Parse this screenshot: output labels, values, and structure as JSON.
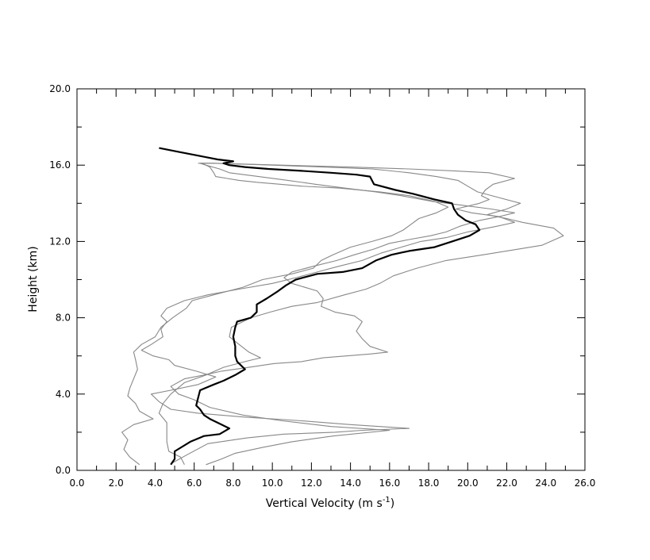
{
  "chart_data": {
    "type": "line",
    "title": "",
    "xlabel": "Vertical Velocity (m s",
    "xlabel_sup": "-1",
    "xlabel_end": ")",
    "ylabel": "Height (km)",
    "xlim": [
      0,
      26
    ],
    "ylim": [
      0,
      20
    ],
    "x_ticks": [
      "0.0",
      "2.0",
      "4.0",
      "6.0",
      "8.0",
      "10.0",
      "12.0",
      "14.0",
      "16.0",
      "18.0",
      "20.0",
      "22.0",
      "24.0",
      "26.0"
    ],
    "y_ticks": [
      "0.0",
      "4.0",
      "8.0",
      "12.0",
      "16.0",
      "20.0"
    ],
    "grid": false,
    "colors": {
      "mean": "#000000",
      "members": "#888888"
    },
    "series": [
      {
        "role": "mean",
        "points": [
          [
            4.8,
            0.3
          ],
          [
            5.0,
            0.6
          ],
          [
            5.0,
            1.0
          ],
          [
            5.8,
            1.5
          ],
          [
            6.5,
            1.8
          ],
          [
            7.3,
            1.9
          ],
          [
            7.8,
            2.2
          ],
          [
            7.2,
            2.5
          ],
          [
            6.8,
            2.7
          ],
          [
            6.5,
            2.9
          ],
          [
            6.3,
            3.2
          ],
          [
            6.1,
            3.4
          ],
          [
            6.2,
            3.8
          ],
          [
            6.3,
            4.2
          ],
          [
            7.0,
            4.5
          ],
          [
            7.5,
            4.7
          ],
          [
            8.1,
            5.0
          ],
          [
            8.6,
            5.3
          ],
          [
            8.2,
            5.7
          ],
          [
            8.1,
            6.0
          ],
          [
            8.1,
            6.5
          ],
          [
            8.0,
            7.0
          ],
          [
            8.1,
            7.5
          ],
          [
            8.2,
            7.8
          ],
          [
            8.9,
            8.0
          ],
          [
            9.2,
            8.3
          ],
          [
            9.2,
            8.7
          ],
          [
            9.7,
            9.0
          ],
          [
            10.3,
            9.4
          ],
          [
            10.7,
            9.7
          ],
          [
            11.2,
            10.0
          ],
          [
            12.3,
            10.3
          ],
          [
            13.6,
            10.4
          ],
          [
            14.6,
            10.6
          ],
          [
            15.3,
            11.0
          ],
          [
            16.1,
            11.3
          ],
          [
            17.0,
            11.5
          ],
          [
            18.3,
            11.7
          ],
          [
            19.2,
            12.0
          ],
          [
            20.1,
            12.3
          ],
          [
            20.6,
            12.6
          ],
          [
            20.4,
            12.9
          ],
          [
            19.9,
            13.1
          ],
          [
            19.5,
            13.4
          ],
          [
            19.3,
            13.7
          ],
          [
            19.2,
            14.0
          ],
          [
            18.3,
            14.2
          ],
          [
            17.2,
            14.5
          ],
          [
            16.3,
            14.7
          ],
          [
            15.2,
            15.0
          ],
          [
            15.0,
            15.4
          ],
          [
            14.3,
            15.5
          ],
          [
            13.0,
            15.6
          ],
          [
            11.5,
            15.7
          ],
          [
            9.8,
            15.8
          ],
          [
            8.6,
            15.9
          ],
          [
            7.8,
            16.0
          ],
          [
            7.5,
            16.1
          ],
          [
            8.0,
            16.2
          ],
          [
            7.2,
            16.3
          ],
          [
            6.2,
            16.5
          ],
          [
            5.2,
            16.7
          ],
          [
            4.2,
            16.9
          ]
        ]
      },
      {
        "role": "member",
        "points": [
          [
            4.9,
            0.4
          ],
          [
            5.6,
            0.8
          ],
          [
            6.7,
            1.4
          ],
          [
            8.7,
            1.7
          ],
          [
            10.6,
            1.9
          ],
          [
            13.2,
            2.0
          ],
          [
            14.6,
            2.1
          ],
          [
            17.0,
            2.2
          ],
          [
            14.0,
            2.4
          ],
          [
            11.5,
            2.6
          ],
          [
            8.5,
            2.8
          ],
          [
            6.2,
            3.0
          ],
          [
            4.8,
            3.2
          ],
          [
            4.2,
            3.6
          ],
          [
            3.8,
            4.0
          ],
          [
            4.8,
            4.2
          ],
          [
            6.2,
            4.5
          ],
          [
            7.1,
            4.9
          ],
          [
            6.1,
            5.2
          ],
          [
            5.0,
            5.5
          ],
          [
            4.7,
            5.8
          ],
          [
            3.9,
            6.0
          ],
          [
            3.3,
            6.3
          ],
          [
            3.8,
            6.6
          ],
          [
            4.4,
            7.0
          ],
          [
            4.3,
            7.4
          ],
          [
            4.6,
            7.8
          ],
          [
            4.3,
            8.1
          ],
          [
            4.6,
            8.5
          ],
          [
            5.5,
            8.9
          ],
          [
            6.7,
            9.2
          ],
          [
            8.3,
            9.5
          ],
          [
            10.0,
            9.8
          ],
          [
            11.2,
            10.1
          ],
          [
            12.3,
            10.4
          ],
          [
            13.4,
            10.7
          ],
          [
            14.6,
            11.0
          ],
          [
            15.6,
            11.4
          ],
          [
            16.6,
            11.7
          ],
          [
            17.6,
            12.0
          ],
          [
            18.9,
            12.2
          ],
          [
            20.0,
            12.5
          ],
          [
            21.5,
            12.8
          ],
          [
            22.4,
            13.0
          ],
          [
            21.6,
            13.3
          ],
          [
            20.2,
            13.5
          ],
          [
            19.4,
            13.7
          ],
          [
            20.6,
            14.0
          ],
          [
            21.1,
            14.2
          ],
          [
            20.7,
            14.4
          ],
          [
            20.9,
            14.7
          ],
          [
            21.3,
            15.0
          ],
          [
            22.4,
            15.3
          ],
          [
            21.1,
            15.6
          ],
          [
            19.3,
            15.7
          ],
          [
            17.0,
            15.8
          ],
          [
            14.0,
            15.9
          ],
          [
            10.5,
            16.0
          ],
          [
            7.0,
            16.1
          ],
          [
            6.2,
            16.1
          ]
        ]
      },
      {
        "role": "member",
        "points": [
          [
            5.5,
            0.3
          ],
          [
            5.3,
            0.7
          ],
          [
            4.7,
            1.0
          ],
          [
            4.6,
            1.5
          ],
          [
            4.6,
            2.0
          ],
          [
            4.6,
            2.5
          ],
          [
            4.2,
            3.0
          ],
          [
            4.4,
            3.5
          ],
          [
            4.8,
            4.0
          ],
          [
            5.5,
            4.6
          ],
          [
            6.6,
            5.0
          ],
          [
            7.5,
            5.4
          ],
          [
            8.6,
            5.7
          ],
          [
            9.4,
            5.9
          ],
          [
            8.8,
            6.2
          ],
          [
            8.3,
            6.6
          ],
          [
            7.8,
            7.0
          ],
          [
            7.9,
            7.5
          ],
          [
            8.9,
            8.0
          ],
          [
            9.9,
            8.3
          ],
          [
            11.0,
            8.6
          ],
          [
            12.3,
            8.8
          ],
          [
            13.7,
            9.2
          ],
          [
            14.8,
            9.5
          ],
          [
            15.5,
            9.8
          ],
          [
            16.2,
            10.2
          ],
          [
            17.4,
            10.6
          ],
          [
            18.9,
            11.0
          ],
          [
            20.8,
            11.3
          ],
          [
            22.0,
            11.5
          ],
          [
            23.8,
            11.8
          ],
          [
            24.9,
            12.3
          ],
          [
            24.4,
            12.7
          ],
          [
            22.8,
            13.0
          ],
          [
            22.0,
            13.2
          ],
          [
            21.0,
            13.4
          ],
          [
            22.0,
            13.7
          ],
          [
            22.7,
            14.0
          ],
          [
            21.6,
            14.3
          ],
          [
            20.5,
            14.6
          ],
          [
            20.0,
            14.9
          ],
          [
            19.5,
            15.2
          ],
          [
            18.4,
            15.4
          ],
          [
            17.0,
            15.6
          ],
          [
            15.1,
            15.8
          ],
          [
            12.6,
            15.9
          ],
          [
            10.0,
            16.0
          ],
          [
            7.0,
            16.1
          ],
          [
            6.3,
            16.1
          ]
        ]
      },
      {
        "role": "member",
        "points": [
          [
            3.2,
            0.3
          ],
          [
            2.7,
            0.7
          ],
          [
            2.4,
            1.1
          ],
          [
            2.6,
            1.6
          ],
          [
            2.3,
            2.0
          ],
          [
            2.9,
            2.4
          ],
          [
            3.9,
            2.7
          ],
          [
            3.2,
            3.1
          ],
          [
            3.0,
            3.5
          ],
          [
            2.6,
            3.9
          ],
          [
            2.7,
            4.3
          ],
          [
            2.9,
            4.8
          ],
          [
            3.1,
            5.3
          ],
          [
            3.0,
            5.8
          ],
          [
            2.9,
            6.2
          ],
          [
            3.3,
            6.6
          ],
          [
            4.0,
            7.0
          ],
          [
            4.3,
            7.5
          ],
          [
            4.9,
            8.0
          ],
          [
            5.6,
            8.5
          ],
          [
            5.9,
            8.9
          ],
          [
            7.0,
            9.2
          ],
          [
            8.5,
            9.6
          ],
          [
            9.5,
            10.0
          ],
          [
            11.0,
            10.3
          ],
          [
            12.1,
            10.6
          ],
          [
            12.5,
            11.0
          ],
          [
            13.1,
            11.3
          ],
          [
            14.0,
            11.7
          ],
          [
            15.1,
            12.0
          ],
          [
            16.1,
            12.3
          ],
          [
            16.7,
            12.6
          ],
          [
            17.1,
            12.9
          ],
          [
            17.5,
            13.2
          ],
          [
            18.4,
            13.5
          ],
          [
            19.0,
            13.8
          ],
          [
            18.3,
            14.1
          ],
          [
            17.0,
            14.4
          ],
          [
            15.5,
            14.6
          ],
          [
            13.4,
            14.8
          ],
          [
            11.5,
            14.9
          ],
          [
            10.4,
            15.0
          ],
          [
            9.2,
            15.1
          ],
          [
            8.3,
            15.2
          ],
          [
            7.7,
            15.3
          ],
          [
            7.1,
            15.4
          ],
          [
            7.0,
            15.6
          ],
          [
            6.8,
            15.9
          ],
          [
            6.4,
            16.1
          ]
        ]
      },
      {
        "role": "member",
        "points": [
          [
            6.6,
            0.3
          ],
          [
            7.4,
            0.6
          ],
          [
            8.1,
            0.9
          ],
          [
            9.5,
            1.2
          ],
          [
            11.0,
            1.5
          ],
          [
            13.1,
            1.8
          ],
          [
            16.0,
            2.1
          ],
          [
            13.0,
            2.3
          ],
          [
            10.5,
            2.6
          ],
          [
            8.5,
            2.9
          ],
          [
            6.8,
            3.3
          ],
          [
            6.0,
            3.7
          ],
          [
            5.2,
            4.0
          ],
          [
            4.8,
            4.4
          ],
          [
            5.5,
            4.8
          ],
          [
            6.5,
            5.0
          ],
          [
            7.4,
            5.2
          ],
          [
            8.8,
            5.4
          ],
          [
            10.1,
            5.6
          ],
          [
            11.5,
            5.7
          ],
          [
            12.6,
            5.9
          ],
          [
            13.8,
            6.0
          ],
          [
            15.0,
            6.1
          ],
          [
            15.9,
            6.2
          ],
          [
            15.0,
            6.5
          ],
          [
            14.6,
            6.9
          ],
          [
            14.3,
            7.3
          ],
          [
            14.6,
            7.8
          ],
          [
            14.2,
            8.1
          ],
          [
            13.2,
            8.3
          ],
          [
            12.5,
            8.6
          ],
          [
            12.6,
            9.0
          ],
          [
            12.3,
            9.4
          ],
          [
            11.0,
            9.8
          ],
          [
            10.6,
            10.1
          ],
          [
            11.0,
            10.4
          ],
          [
            12.1,
            10.7
          ],
          [
            13.3,
            11.0
          ],
          [
            14.2,
            11.3
          ],
          [
            15.2,
            11.6
          ],
          [
            16.0,
            11.9
          ],
          [
            17.0,
            12.1
          ],
          [
            18.1,
            12.3
          ],
          [
            18.9,
            12.5
          ],
          [
            19.6,
            12.8
          ],
          [
            20.6,
            13.1
          ],
          [
            21.6,
            13.3
          ],
          [
            22.4,
            13.5
          ],
          [
            21.2,
            13.7
          ],
          [
            19.7,
            13.9
          ],
          [
            18.2,
            14.1
          ],
          [
            16.6,
            14.4
          ],
          [
            15.3,
            14.6
          ],
          [
            13.7,
            14.8
          ],
          [
            12.2,
            15.0
          ],
          [
            10.8,
            15.2
          ],
          [
            9.3,
            15.4
          ],
          [
            7.8,
            15.6
          ],
          [
            7.3,
            15.8
          ],
          [
            6.6,
            16.0
          ],
          [
            6.3,
            16.1
          ]
        ]
      }
    ]
  }
}
